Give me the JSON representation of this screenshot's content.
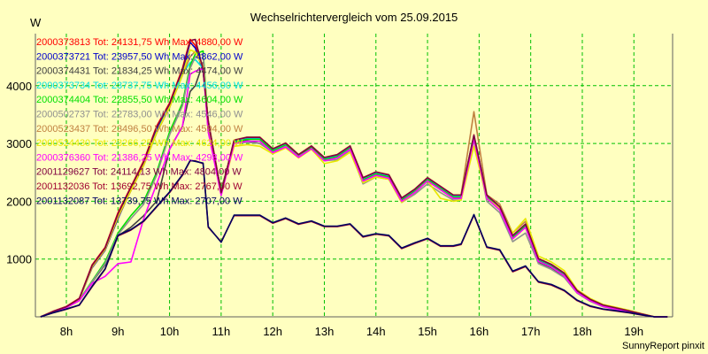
{
  "chart_data": {
    "type": "line",
    "title": "Wechselrichtervergleich vom 25.09.2015",
    "ylabel": "W",
    "xlabel": "",
    "footer": "SunnyReport pinxit",
    "ylim": [
      0,
      4900
    ],
    "xlim": [
      7.4,
      19.75
    ],
    "y_ticks": [
      {
        "value": 1000,
        "label": "1000"
      },
      {
        "value": 2000,
        "label": "2000"
      },
      {
        "value": 3000,
        "label": "3000"
      },
      {
        "value": 4000,
        "label": "4000"
      }
    ],
    "x_ticks": [
      {
        "value": 8,
        "label": "8h"
      },
      {
        "value": 9,
        "label": "9h"
      },
      {
        "value": 10,
        "label": "10h"
      },
      {
        "value": 11,
        "label": "11h"
      },
      {
        "value": 12,
        "label": "12h"
      },
      {
        "value": 13,
        "label": "13h"
      },
      {
        "value": 14,
        "label": "14h"
      },
      {
        "value": 15,
        "label": "15h"
      },
      {
        "value": 16,
        "label": "16h"
      },
      {
        "value": 17,
        "label": "17h"
      },
      {
        "value": 18,
        "label": "18h"
      },
      {
        "value": 19,
        "label": "19h"
      }
    ],
    "grid": true,
    "legend_position": "top-left",
    "x": [
      7.5,
      7.75,
      8.0,
      8.25,
      8.5,
      8.75,
      9.0,
      9.25,
      9.5,
      9.75,
      10.0,
      10.25,
      10.4,
      10.5,
      10.65,
      10.75,
      11.0,
      11.25,
      11.5,
      11.75,
      12.0,
      12.25,
      12.5,
      12.75,
      13.0,
      13.25,
      13.5,
      13.75,
      14.0,
      14.25,
      14.5,
      14.75,
      15.0,
      15.25,
      15.5,
      15.65,
      15.9,
      16.15,
      16.4,
      16.65,
      16.9,
      17.15,
      17.4,
      17.65,
      17.9,
      18.15,
      18.4,
      18.65,
      18.9,
      19.15,
      19.4,
      19.65
    ],
    "series": [
      {
        "name": "2000373813",
        "legend": "2000373813 Tot: 24131,75 Wh Max: 4880,00 W",
        "color": "#ff0000",
        "values": [
          0,
          100,
          180,
          320,
          900,
          1200,
          1800,
          2250,
          2700,
          3300,
          3700,
          4300,
          4800,
          4700,
          4300,
          3400,
          2150,
          3050,
          3100,
          3100,
          2900,
          3000,
          2800,
          2950,
          2750,
          2800,
          2950,
          2400,
          2500,
          2450,
          2050,
          2200,
          2400,
          2250,
          2100,
          2100,
          3150,
          2100,
          1900,
          1400,
          1600,
          1000,
          900,
          750,
          450,
          300,
          200,
          150,
          100,
          50,
          0,
          0
        ]
      },
      {
        "name": "2000373721",
        "legend": "2000373721 Tot: 23957,50 Wh Max: 4862,00 W",
        "color": "#0000cc",
        "values": [
          0,
          90,
          170,
          300,
          850,
          1150,
          1700,
          2200,
          2650,
          3250,
          3650,
          4250,
          4750,
          4650,
          4250,
          3350,
          2130,
          3040,
          3090,
          3090,
          2890,
          2990,
          2790,
          2940,
          2740,
          2790,
          2940,
          2390,
          2490,
          2440,
          2040,
          2190,
          2390,
          2240,
          2090,
          2090,
          3130,
          2090,
          1890,
          1390,
          1590,
          990,
          890,
          740,
          440,
          290,
          190,
          140,
          90,
          40,
          0,
          0
        ]
      },
      {
        "name": "2000374431",
        "legend": "2000374431 Tot: 21834,25 Wh Max: 4474,00 W",
        "color": "#404040",
        "values": [
          0,
          80,
          160,
          280,
          600,
          900,
          1400,
          1550,
          1750,
          2000,
          2900,
          3300,
          3900,
          4000,
          4400,
          3200,
          2200,
          3000,
          3050,
          3000,
          2850,
          2950,
          2800,
          2950,
          2700,
          2750,
          2900,
          2350,
          2450,
          2400,
          2000,
          2150,
          2350,
          2200,
          2050,
          2050,
          3100,
          2050,
          1850,
          1350,
          1550,
          950,
          850,
          700,
          420,
          280,
          180,
          130,
          80,
          40,
          0,
          0
        ]
      },
      {
        "name": "2000373734",
        "legend": "2000373734 Tot: 23737,75 Wh Max: 4456,00 W",
        "color": "#00e0e0",
        "values": [
          0,
          95,
          175,
          310,
          880,
          1180,
          1750,
          2200,
          2650,
          3200,
          3650,
          4200,
          4400,
          4450,
          4300,
          3380,
          2140,
          3045,
          3095,
          3095,
          2895,
          2995,
          2795,
          2945,
          2745,
          2795,
          2945,
          2395,
          2495,
          2445,
          2045,
          2195,
          2395,
          2245,
          2095,
          2095,
          3140,
          2095,
          1895,
          1395,
          1595,
          995,
          895,
          745,
          445,
          295,
          195,
          145,
          95,
          45,
          0,
          0
        ]
      },
      {
        "name": "2000374404",
        "legend": "2000374404 Tot: 22855,50 Wh Max: 4604,00 W",
        "color": "#00e000",
        "values": [
          0,
          85,
          165,
          290,
          620,
          950,
          1450,
          1750,
          2000,
          2500,
          3200,
          3700,
          4350,
          4550,
          4600,
          3300,
          2180,
          3020,
          3070,
          3070,
          2870,
          2970,
          2780,
          2930,
          2720,
          2770,
          2920,
          2370,
          2470,
          2420,
          2020,
          2170,
          2370,
          2220,
          2070,
          2070,
          3110,
          2070,
          1870,
          1370,
          1570,
          970,
          870,
          720,
          430,
          285,
          185,
          135,
          85,
          40,
          0,
          0
        ]
      },
      {
        "name": "2000502737",
        "legend": "2000502737 Tot: 22783,00 Wh Max: 4546,00 W",
        "color": "#909090",
        "values": [
          0,
          80,
          160,
          285,
          610,
          920,
          1420,
          1700,
          1950,
          2450,
          3150,
          3650,
          4300,
          4500,
          4550,
          3250,
          2170,
          3000,
          3020,
          3000,
          2850,
          2950,
          2780,
          2900,
          2700,
          2720,
          2880,
          2300,
          2420,
          2380,
          1980,
          2120,
          2300,
          2150,
          2020,
          2020,
          3050,
          2000,
          1800,
          1300,
          1450,
          920,
          820,
          680,
          410,
          270,
          175,
          125,
          80,
          40,
          0,
          0
        ]
      },
      {
        "name": "2000523437",
        "legend": "2000523437 Tot: 23496,50 Wh Max: 4594,00 W",
        "color": "#c08040",
        "values": [
          0,
          90,
          170,
          300,
          860,
          1160,
          1720,
          2180,
          2620,
          3180,
          3620,
          4180,
          4500,
          4594,
          4350,
          3360,
          2150,
          3060,
          3110,
          3110,
          2910,
          3010,
          2810,
          2960,
          2760,
          2810,
          2960,
          2410,
          2510,
          2460,
          2060,
          2210,
          2410,
          2260,
          2110,
          2110,
          3550,
          2110,
          1950,
          1450,
          1650,
          1010,
          910,
          760,
          460,
          310,
          210,
          160,
          110,
          50,
          0,
          0
        ]
      },
      {
        "name": "2000524430",
        "legend": "2000524430 Tot: 23266,25 Wh Max: 4624,00 W",
        "color": "#e8e800",
        "values": [
          0,
          90,
          170,
          300,
          870,
          1170,
          1740,
          2190,
          2630,
          3190,
          3630,
          4190,
          4620,
          4580,
          4320,
          3360,
          2120,
          2950,
          2980,
          2950,
          2820,
          2920,
          2750,
          2900,
          2650,
          2700,
          2850,
          2320,
          2420,
          2380,
          1980,
          2150,
          2350,
          2050,
          2000,
          2020,
          2950,
          2050,
          1880,
          1450,
          1700,
          1050,
          950,
          800,
          470,
          320,
          215,
          165,
          115,
          55,
          0,
          0
        ]
      },
      {
        "name": "2000376360",
        "legend": "2000376360 Tot: 21386,25 Wh Max: 4293,00 W",
        "color": "#ff00ff",
        "values": [
          0,
          85,
          160,
          280,
          580,
          700,
          920,
          950,
          1700,
          2300,
          2900,
          3300,
          4200,
          4250,
          4293,
          3200,
          2100,
          3000,
          3040,
          3040,
          2840,
          2940,
          2760,
          2910,
          2700,
          2750,
          2900,
          2350,
          2450,
          2400,
          2000,
          2150,
          2350,
          2200,
          2050,
          2050,
          3080,
          2050,
          1850,
          1350,
          1550,
          960,
          860,
          710,
          420,
          280,
          180,
          130,
          85,
          40,
          0,
          0
        ]
      },
      {
        "name": "2001129627",
        "legend": "2001129627 Tot: 24114,13 Wh Max: 4804,00 W",
        "color": "#800040",
        "values": [
          0,
          95,
          175,
          315,
          890,
          1190,
          1780,
          2240,
          2680,
          3280,
          3680,
          4280,
          4780,
          4800,
          4280,
          3380,
          2145,
          3055,
          3105,
          3105,
          2905,
          3005,
          2805,
          2955,
          2755,
          2805,
          2955,
          2405,
          2505,
          2455,
          2055,
          2205,
          2405,
          2255,
          2105,
          2105,
          3140,
          2105,
          1905,
          1405,
          1605,
          1005,
          905,
          755,
          455,
          305,
          205,
          155,
          105,
          50,
          0,
          0
        ]
      },
      {
        "name": "2001132036",
        "legend": "2001132036 Tot: 13692,75 Wh Max: 2767,00 W",
        "color": "#a00030",
        "values": [
          0,
          70,
          130,
          200,
          520,
          820,
          1400,
          1500,
          1650,
          1900,
          2150,
          2450,
          2700,
          2700,
          2650,
          1550,
          1300,
          1750,
          1750,
          1750,
          1620,
          1700,
          1600,
          1650,
          1560,
          1560,
          1600,
          1380,
          1430,
          1400,
          1180,
          1270,
          1350,
          1220,
          1220,
          1250,
          1760,
          1200,
          1150,
          780,
          870,
          600,
          550,
          450,
          280,
          180,
          130,
          100,
          70,
          30,
          0,
          0
        ]
      },
      {
        "name": "2001132087",
        "legend": "2001132087 Tot: 13739,75 Wh Max: 2707,00 W",
        "color": "#000060",
        "values": [
          0,
          72,
          135,
          205,
          530,
          830,
          1410,
          1510,
          1660,
          1910,
          2160,
          2460,
          2707,
          2690,
          2660,
          1560,
          1290,
          1760,
          1760,
          1760,
          1630,
          1710,
          1610,
          1660,
          1570,
          1570,
          1610,
          1390,
          1440,
          1410,
          1190,
          1280,
          1360,
          1230,
          1230,
          1260,
          1770,
          1210,
          1160,
          790,
          880,
          610,
          560,
          460,
          290,
          190,
          135,
          105,
          75,
          35,
          0,
          0
        ]
      }
    ]
  }
}
